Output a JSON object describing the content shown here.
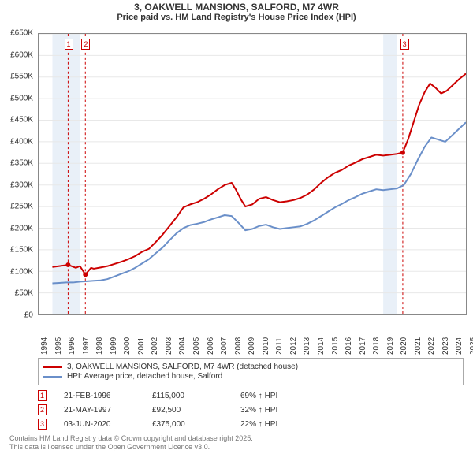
{
  "title": "3, OAKWELL MANSIONS, SALFORD, M7 4WR",
  "subtitle": "Price paid vs. HM Land Registry's House Price Index (HPI)",
  "chart": {
    "type": "line",
    "background_color": "#ffffff",
    "grid_color": "#e8e8e8",
    "border_color": "#888888",
    "xlim": [
      1994,
      2025
    ],
    "ylim": [
      0,
      650000
    ],
    "ytick_step": 50000,
    "y_tick_labels": [
      "£0",
      "£50K",
      "£100K",
      "£150K",
      "£200K",
      "£250K",
      "£300K",
      "£350K",
      "£400K",
      "£450K",
      "£500K",
      "£550K",
      "£600K",
      "£650K"
    ],
    "x_tick_labels": [
      "1994",
      "1995",
      "1996",
      "1997",
      "1998",
      "1999",
      "2000",
      "2001",
      "2002",
      "2003",
      "2004",
      "2005",
      "2006",
      "2007",
      "2008",
      "2009",
      "2010",
      "2011",
      "2012",
      "2013",
      "2014",
      "2015",
      "2016",
      "2017",
      "2018",
      "2019",
      "2020",
      "2021",
      "2022",
      "2023",
      "2024",
      "2025"
    ],
    "label_fontsize": 10,
    "title_fontsize": 12,
    "bands": [
      [
        1995,
        1996
      ],
      [
        1996,
        1997
      ],
      [
        2019,
        2020
      ]
    ],
    "band_color": "#dbe6f3",
    "markers": [
      {
        "id": "1",
        "year": 1996.14
      },
      {
        "id": "2",
        "year": 1997.39
      },
      {
        "id": "3",
        "year": 2020.42
      }
    ],
    "marker_style": {
      "border_color": "#cc0000",
      "text_color": "#cc0000",
      "line_dash": "3 3"
    },
    "series": [
      {
        "name": "property",
        "label": "3, OAKWELL MANSIONS, SALFORD, M7 4WR (detached house)",
        "color": "#cc0000",
        "line_width": 2,
        "points": [
          [
            1995.0,
            110000
          ],
          [
            1995.5,
            112000
          ],
          [
            1996.14,
            115000
          ],
          [
            1996.7,
            108000
          ],
          [
            1997.0,
            112000
          ],
          [
            1997.39,
            92500
          ],
          [
            1997.8,
            108000
          ],
          [
            1998.0,
            106000
          ],
          [
            1998.5,
            109000
          ],
          [
            1999.0,
            112000
          ],
          [
            1999.5,
            117000
          ],
          [
            2000.0,
            122000
          ],
          [
            2000.5,
            128000
          ],
          [
            2001.0,
            135000
          ],
          [
            2001.5,
            145000
          ],
          [
            2002.0,
            152000
          ],
          [
            2002.5,
            168000
          ],
          [
            2003.0,
            185000
          ],
          [
            2003.5,
            205000
          ],
          [
            2004.0,
            225000
          ],
          [
            2004.5,
            248000
          ],
          [
            2005.0,
            255000
          ],
          [
            2005.5,
            260000
          ],
          [
            2006.0,
            268000
          ],
          [
            2006.5,
            278000
          ],
          [
            2007.0,
            290000
          ],
          [
            2007.5,
            300000
          ],
          [
            2008.0,
            305000
          ],
          [
            2008.3,
            290000
          ],
          [
            2008.7,
            265000
          ],
          [
            2009.0,
            250000
          ],
          [
            2009.5,
            255000
          ],
          [
            2010.0,
            268000
          ],
          [
            2010.5,
            272000
          ],
          [
            2011.0,
            265000
          ],
          [
            2011.5,
            260000
          ],
          [
            2012.0,
            262000
          ],
          [
            2012.5,
            265000
          ],
          [
            2013.0,
            270000
          ],
          [
            2013.5,
            278000
          ],
          [
            2014.0,
            290000
          ],
          [
            2014.5,
            305000
          ],
          [
            2015.0,
            318000
          ],
          [
            2015.5,
            328000
          ],
          [
            2016.0,
            335000
          ],
          [
            2016.5,
            345000
          ],
          [
            2017.0,
            352000
          ],
          [
            2017.5,
            360000
          ],
          [
            2018.0,
            365000
          ],
          [
            2018.5,
            370000
          ],
          [
            2019.0,
            368000
          ],
          [
            2019.5,
            370000
          ],
          [
            2020.0,
            372000
          ],
          [
            2020.42,
            375000
          ],
          [
            2020.8,
            405000
          ],
          [
            2021.2,
            445000
          ],
          [
            2021.6,
            485000
          ],
          [
            2022.0,
            515000
          ],
          [
            2022.4,
            535000
          ],
          [
            2022.8,
            525000
          ],
          [
            2023.2,
            512000
          ],
          [
            2023.6,
            518000
          ],
          [
            2024.0,
            530000
          ],
          [
            2024.5,
            545000
          ],
          [
            2025.0,
            558000
          ]
        ],
        "sale_dots": [
          [
            1996.14,
            115000
          ],
          [
            1997.39,
            92500
          ],
          [
            2020.42,
            375000
          ]
        ],
        "dot_radius": 3
      },
      {
        "name": "hpi",
        "label": "HPI: Average price, detached house, Salford",
        "color": "#6a8fc9",
        "line_width": 2,
        "points": [
          [
            1995.0,
            72000
          ],
          [
            1995.5,
            73000
          ],
          [
            1996.0,
            74000
          ],
          [
            1996.5,
            74000
          ],
          [
            1997.0,
            76000
          ],
          [
            1997.5,
            77000
          ],
          [
            1998.0,
            78000
          ],
          [
            1998.5,
            79000
          ],
          [
            1999.0,
            82000
          ],
          [
            1999.5,
            88000
          ],
          [
            2000.0,
            94000
          ],
          [
            2000.5,
            100000
          ],
          [
            2001.0,
            108000
          ],
          [
            2001.5,
            118000
          ],
          [
            2002.0,
            128000
          ],
          [
            2002.5,
            142000
          ],
          [
            2003.0,
            155000
          ],
          [
            2003.5,
            172000
          ],
          [
            2004.0,
            188000
          ],
          [
            2004.5,
            200000
          ],
          [
            2005.0,
            207000
          ],
          [
            2005.5,
            210000
          ],
          [
            2006.0,
            214000
          ],
          [
            2006.5,
            220000
          ],
          [
            2007.0,
            225000
          ],
          [
            2007.5,
            230000
          ],
          [
            2008.0,
            228000
          ],
          [
            2008.5,
            212000
          ],
          [
            2009.0,
            195000
          ],
          [
            2009.5,
            198000
          ],
          [
            2010.0,
            205000
          ],
          [
            2010.5,
            208000
          ],
          [
            2011.0,
            202000
          ],
          [
            2011.5,
            198000
          ],
          [
            2012.0,
            200000
          ],
          [
            2012.5,
            202000
          ],
          [
            2013.0,
            204000
          ],
          [
            2013.5,
            210000
          ],
          [
            2014.0,
            218000
          ],
          [
            2014.5,
            228000
          ],
          [
            2015.0,
            238000
          ],
          [
            2015.5,
            248000
          ],
          [
            2016.0,
            256000
          ],
          [
            2016.5,
            265000
          ],
          [
            2017.0,
            272000
          ],
          [
            2017.5,
            280000
          ],
          [
            2018.0,
            285000
          ],
          [
            2018.5,
            290000
          ],
          [
            2019.0,
            288000
          ],
          [
            2019.5,
            290000
          ],
          [
            2020.0,
            292000
          ],
          [
            2020.5,
            300000
          ],
          [
            2021.0,
            325000
          ],
          [
            2021.5,
            358000
          ],
          [
            2022.0,
            388000
          ],
          [
            2022.5,
            410000
          ],
          [
            2023.0,
            405000
          ],
          [
            2023.5,
            400000
          ],
          [
            2024.0,
            415000
          ],
          [
            2024.5,
            430000
          ],
          [
            2025.0,
            445000
          ]
        ]
      }
    ]
  },
  "legend": {
    "items": [
      {
        "color": "#cc0000",
        "label": "3, OAKWELL MANSIONS, SALFORD, M7 4WR (detached house)"
      },
      {
        "color": "#6a8fc9",
        "label": "HPI: Average price, detached house, Salford"
      }
    ]
  },
  "sales": [
    {
      "id": "1",
      "date": "21-FEB-1996",
      "price": "£115,000",
      "hpi": "69% ↑ HPI"
    },
    {
      "id": "2",
      "date": "21-MAY-1997",
      "price": "£92,500",
      "hpi": "32% ↑ HPI"
    },
    {
      "id": "3",
      "date": "03-JUN-2020",
      "price": "£375,000",
      "hpi": "22% ↑ HPI"
    }
  ],
  "footnote_line1": "Contains HM Land Registry data © Crown copyright and database right 2025.",
  "footnote_line2": "This data is licensed under the Open Government Licence v3.0."
}
